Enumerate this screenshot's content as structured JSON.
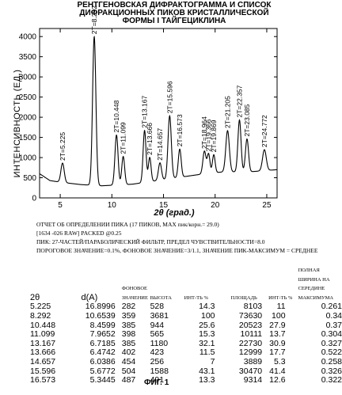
{
  "title_lines": [
    "РЕНТГЕНОВСКАЯ ДИФРАКТОГРАММА И СПИСОК",
    "ДИФРАКЦИОННЫХ ПИКОВ КРИСТАЛЛИЧЕСКОЙ",
    "ФОРМЫ I ТАЙГЕЦИКЛИНА"
  ],
  "chart_data": {
    "type": "line",
    "ylabel": "ИНТЕНСИВНОСТЬ (ЕД.)",
    "xlabel": "2θ (град.)",
    "xlim": [
      3,
      26
    ],
    "ylim": [
      0,
      4200
    ],
    "x_ticks": [
      5,
      10,
      15,
      20,
      25
    ],
    "y_ticks": [
      0,
      500,
      1000,
      1500,
      2000,
      2500,
      3000,
      3500,
      4000
    ],
    "baseline": [
      [
        3,
        600
      ],
      [
        4,
        430
      ],
      [
        5,
        390
      ],
      [
        7,
        330
      ],
      [
        9,
        300
      ],
      [
        12,
        340
      ],
      [
        16,
        490
      ],
      [
        19,
        600
      ],
      [
        21,
        650
      ],
      [
        23,
        640
      ],
      [
        26,
        700
      ]
    ],
    "peaks": [
      {
        "pos": 5.225,
        "h": 480,
        "w": 0.16,
        "label": "2T=5.225"
      },
      {
        "pos": 8.292,
        "h": 3690,
        "w": 0.16,
        "label": "2T=8.292"
      },
      {
        "pos": 10.448,
        "h": 1240,
        "w": 0.15,
        "label": "2T=10.448"
      },
      {
        "pos": 11.099,
        "h": 700,
        "w": 0.14,
        "label": "2T=11.099"
      },
      {
        "pos": 13.167,
        "h": 1290,
        "w": 0.14,
        "label": "2T=13.167"
      },
      {
        "pos": 13.666,
        "h": 600,
        "w": 0.13,
        "label": "2T=13.666"
      },
      {
        "pos": 14.657,
        "h": 430,
        "w": 0.15,
        "label": "2T=14.657"
      },
      {
        "pos": 15.596,
        "h": 1560,
        "w": 0.16,
        "label": "2T=15.596"
      },
      {
        "pos": 16.573,
        "h": 700,
        "w": 0.14,
        "label": "2T=16.573"
      },
      {
        "pos": 18.964,
        "h": 560,
        "w": 0.15,
        "label": "2T=18.964"
      },
      {
        "pos": 19.366,
        "h": 480,
        "w": 0.13,
        "label": "2T=19.366"
      },
      {
        "pos": 19.869,
        "h": 450,
        "w": 0.13,
        "label": "2T=19.869"
      },
      {
        "pos": 21.205,
        "h": 1020,
        "w": 0.17,
        "label": "2T=21.205"
      },
      {
        "pos": 22.357,
        "h": 1290,
        "w": 0.15,
        "label": "2T=22.357"
      },
      {
        "pos": 23.085,
        "h": 820,
        "w": 0.15,
        "label": "2T=23.085"
      },
      {
        "pos": 24.772,
        "h": 520,
        "w": 0.18,
        "label": "2T=24.772"
      }
    ],
    "line_color": "#000000"
  },
  "report_lines": [
    "ОТЧЕТ ОБ ОПРЕДЕЛЕНИИ ПИКА (17 ПИКОВ, MAX пик/корн.= 29.0)",
    "[1634 -026 RAW] PACKED @0.25",
    "ПИК: 27-ЧАСТЕЙ/ПАРАБОЛИЧЕСКИЙ ФИЛЬТР, ПРЕДЕЛ ЧУВСТВИТЕЛЬНОСТИ=8.0",
    "ПОРОГОВОЕ ЗНАЧЕНИЕ=0.1%, ФОНОВОЕ ЗНАЧЕНИЕ=3/1.1, ЗНАЧЕНИЕ ПИК-МАКСИМУМ = СРЕДНЕЕ"
  ],
  "table": {
    "headers": [
      "2θ",
      "d(A)",
      "ФОНОВОЕ ЗНАЧЕНИЕ",
      "ВЫСОТА",
      "ИНТ-ТЬ %",
      "ПЛОЩАДЬ",
      "ИНТ-ТЬ %",
      "ПОЛНАЯ ШИРИНА НА СЕРЕДИНЕ МАКСИМУМА"
    ],
    "rows": [
      [
        "5.225",
        "16.8996",
        "282",
        "528",
        "14.3",
        "8103",
        "11",
        "0.261"
      ],
      [
        "8.292",
        "10.6539",
        "359",
        "3681",
        "100",
        "73630",
        "100",
        "0.34"
      ],
      [
        "10.448",
        "8.4599",
        "385",
        "944",
        "25.6",
        "20523",
        "27.9",
        "0.37"
      ],
      [
        "11.099",
        "7.9652",
        "398",
        "565",
        "15.3",
        "10111",
        "13.7",
        "0.304"
      ],
      [
        "13.167",
        "6.7185",
        "385",
        "1180",
        "32.1",
        "22730",
        "30.9",
        "0.327"
      ],
      [
        "13.666",
        "6.4742",
        "402",
        "423",
        "11.5",
        "12999",
        "17.7",
        "0.522"
      ],
      [
        "14.657",
        "6.0386",
        "454",
        "256",
        "7",
        "3889",
        "5.3",
        "0.258"
      ],
      [
        "15.596",
        "5.6772",
        "504",
        "1588",
        "43.1",
        "30470",
        "41.4",
        "0.326"
      ],
      [
        "16.573",
        "5.3445",
        "487",
        "491",
        "13.3",
        "9314",
        "12.6",
        "0.322"
      ]
    ]
  },
  "figure_caption": "ФИГ. 1"
}
